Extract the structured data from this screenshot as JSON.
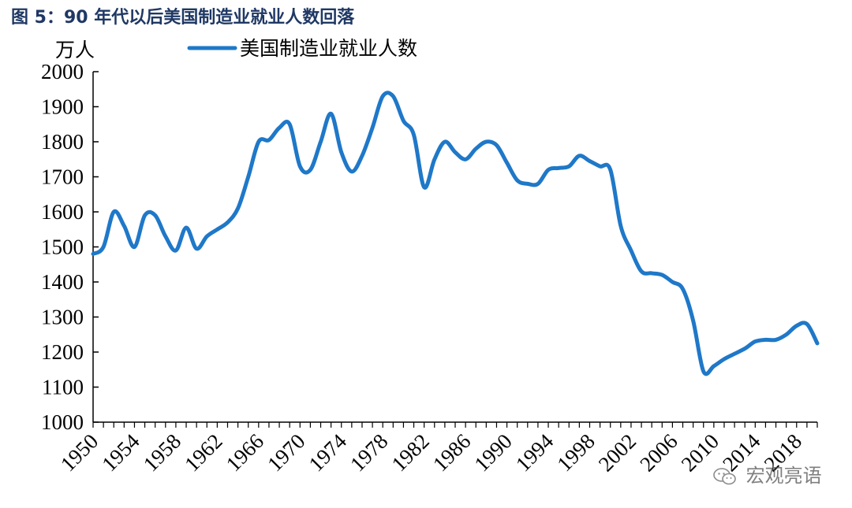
{
  "caption": "图 5：90 年代以后美国制造业就业人数回落",
  "watermark": {
    "text": "宏观亮语",
    "icon": "wechat-icon"
  },
  "chart_data": {
    "type": "line",
    "title": "",
    "unit_label": "万人",
    "xlabel": "",
    "ylabel": "",
    "ylim": [
      1000,
      2000
    ],
    "ytick_step": 100,
    "xlim": [
      1950,
      2020
    ],
    "xticks": [
      "1950",
      "1954",
      "1958",
      "1962",
      "1966",
      "1970",
      "1974",
      "1978",
      "1982",
      "1986",
      "1990",
      "1994",
      "1998",
      "2002",
      "2006",
      "2010",
      "2014",
      "2018"
    ],
    "grid": false,
    "legend_position": "top",
    "line_color": "#1f78c8",
    "series": [
      {
        "name": "美国制造业就业人数",
        "x": [
          1950,
          1951,
          1952,
          1953,
          1954,
          1955,
          1956,
          1957,
          1958,
          1959,
          1960,
          1961,
          1962,
          1963,
          1964,
          1965,
          1966,
          1967,
          1968,
          1969,
          1970,
          1971,
          1972,
          1973,
          1974,
          1975,
          1976,
          1977,
          1978,
          1979,
          1980,
          1981,
          1982,
          1983,
          1984,
          1985,
          1986,
          1987,
          1988,
          1989,
          1990,
          1991,
          1992,
          1993,
          1994,
          1995,
          1996,
          1997,
          1998,
          1999,
          2000,
          2001,
          2002,
          2003,
          2004,
          2005,
          2006,
          2007,
          2008,
          2009,
          2010,
          2011,
          2012,
          2013,
          2014,
          2015,
          2016,
          2017,
          2018,
          2019,
          2020
        ],
        "values": [
          1480,
          1500,
          1600,
          1560,
          1500,
          1590,
          1590,
          1530,
          1490,
          1555,
          1495,
          1530,
          1550,
          1570,
          1610,
          1700,
          1800,
          1805,
          1840,
          1850,
          1730,
          1720,
          1800,
          1880,
          1770,
          1715,
          1760,
          1840,
          1930,
          1930,
          1860,
          1820,
          1670,
          1750,
          1800,
          1770,
          1750,
          1780,
          1800,
          1790,
          1740,
          1690,
          1680,
          1680,
          1720,
          1725,
          1730,
          1760,
          1745,
          1730,
          1720,
          1560,
          1490,
          1430,
          1425,
          1420,
          1400,
          1380,
          1290,
          1145,
          1160,
          1180,
          1195,
          1210,
          1230,
          1235,
          1235,
          1250,
          1275,
          1280,
          1225
        ]
      }
    ]
  }
}
